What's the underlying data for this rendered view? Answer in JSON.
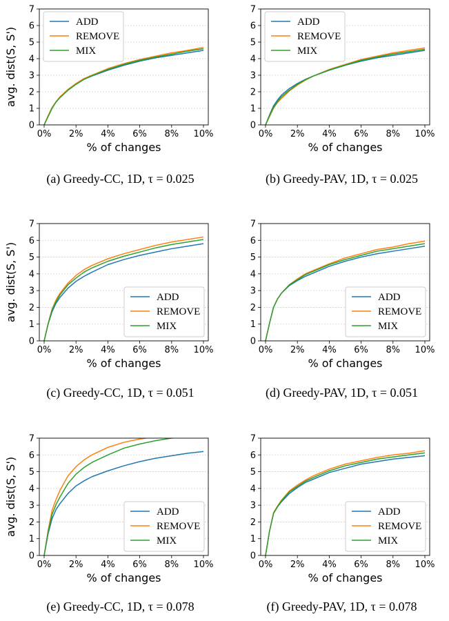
{
  "figure": {
    "colors": {
      "ADD": "#1f77b4",
      "REMOVE": "#ff7f0e",
      "MIX": "#2ca02c",
      "grid": "#d0d0d0"
    }
  },
  "chart_data": [
    {
      "type": "line",
      "panel": "a",
      "caption": "(a) Greedy-CC, 1D, τ = 0.025",
      "xlabel": "% of changes",
      "ylabel": "avg. dist(S, S')",
      "xlim": [
        0,
        10
      ],
      "ylim": [
        0,
        7
      ],
      "xticks": [
        "0%",
        "2%",
        "4%",
        "6%",
        "8%",
        "10%"
      ],
      "yticks": [
        "0",
        "1",
        "2",
        "3",
        "4",
        "5",
        "6",
        "7"
      ],
      "grid": "horizontal",
      "legend_position": "top-left",
      "x": [
        0,
        0.25,
        0.5,
        0.75,
        1,
        1.5,
        2,
        2.5,
        3,
        4,
        5,
        6,
        7,
        8,
        9,
        10
      ],
      "series": [
        {
          "name": "ADD",
          "values": [
            0,
            0.55,
            1.05,
            1.4,
            1.7,
            2.1,
            2.45,
            2.75,
            2.95,
            3.3,
            3.6,
            3.85,
            4.05,
            4.2,
            4.35,
            4.5
          ]
        },
        {
          "name": "REMOVE",
          "values": [
            0,
            0.55,
            1.05,
            1.4,
            1.7,
            2.15,
            2.5,
            2.8,
            3.0,
            3.4,
            3.7,
            3.95,
            4.15,
            4.35,
            4.5,
            4.68
          ]
        },
        {
          "name": "MIX",
          "values": [
            0,
            0.5,
            1.0,
            1.38,
            1.65,
            2.1,
            2.45,
            2.75,
            2.97,
            3.35,
            3.65,
            3.9,
            4.1,
            4.27,
            4.45,
            4.6
          ]
        }
      ]
    },
    {
      "type": "line",
      "panel": "b",
      "caption": "(b) Greedy-PAV, 1D, τ = 0.025",
      "xlabel": "% of changes",
      "ylabel": "",
      "xlim": [
        0,
        10
      ],
      "ylim": [
        0,
        7
      ],
      "xticks": [
        "0%",
        "2%",
        "4%",
        "6%",
        "8%",
        "10%"
      ],
      "yticks": [
        "0",
        "1",
        "2",
        "3",
        "4",
        "5",
        "6",
        "7"
      ],
      "grid": "horizontal",
      "legend_position": "top-left",
      "x": [
        0,
        0.25,
        0.5,
        0.75,
        1,
        1.5,
        2,
        2.5,
        3,
        4,
        5,
        6,
        7,
        8,
        9,
        10
      ],
      "series": [
        {
          "name": "ADD",
          "values": [
            0,
            0.6,
            1.15,
            1.5,
            1.8,
            2.2,
            2.5,
            2.75,
            2.95,
            3.3,
            3.6,
            3.85,
            4.05,
            4.2,
            4.35,
            4.5
          ]
        },
        {
          "name": "REMOVE",
          "values": [
            0,
            0.5,
            1.0,
            1.35,
            1.6,
            2.05,
            2.4,
            2.7,
            2.95,
            3.35,
            3.65,
            3.95,
            4.15,
            4.35,
            4.5,
            4.65
          ]
        },
        {
          "name": "MIX",
          "values": [
            0,
            0.55,
            1.05,
            1.4,
            1.7,
            2.1,
            2.45,
            2.73,
            2.95,
            3.32,
            3.62,
            3.9,
            4.1,
            4.28,
            4.42,
            4.57
          ]
        }
      ]
    },
    {
      "type": "line",
      "panel": "c",
      "caption": "(c) Greedy-CC, 1D, τ = 0.051",
      "xlabel": "% of changes",
      "ylabel": "avg. dist(S, S')",
      "xlim": [
        0,
        10
      ],
      "ylim": [
        0,
        7
      ],
      "xticks": [
        "0%",
        "2%",
        "4%",
        "6%",
        "8%",
        "10%"
      ],
      "yticks": [
        "0",
        "1",
        "2",
        "3",
        "4",
        "5",
        "6",
        "7"
      ],
      "grid": "horizontal",
      "legend_position": "bottom-right",
      "x": [
        0,
        0.25,
        0.5,
        0.75,
        1,
        1.5,
        2,
        2.5,
        3,
        4,
        5,
        6,
        7,
        8,
        9,
        10
      ],
      "series": [
        {
          "name": "ADD",
          "values": [
            0,
            1.0,
            1.75,
            2.25,
            2.6,
            3.15,
            3.55,
            3.85,
            4.1,
            4.55,
            4.85,
            5.1,
            5.3,
            5.5,
            5.65,
            5.8
          ]
        },
        {
          "name": "REMOVE",
          "values": [
            0,
            1.05,
            1.9,
            2.45,
            2.85,
            3.45,
            3.9,
            4.25,
            4.5,
            4.9,
            5.2,
            5.45,
            5.7,
            5.9,
            6.05,
            6.2
          ]
        },
        {
          "name": "MIX",
          "values": [
            0,
            1.0,
            1.85,
            2.35,
            2.75,
            3.35,
            3.75,
            4.1,
            4.35,
            4.75,
            5.05,
            5.3,
            5.55,
            5.75,
            5.9,
            6.05
          ]
        }
      ]
    },
    {
      "type": "line",
      "panel": "d",
      "caption": "(d) Greedy-PAV, 1D, τ = 0.051",
      "xlabel": "% of changes",
      "ylabel": "",
      "xlim": [
        0,
        10
      ],
      "ylim": [
        0,
        7
      ],
      "xticks": [
        "0%",
        "2%",
        "4%",
        "6%",
        "8%",
        "10%"
      ],
      "yticks": [
        "0",
        "1",
        "2",
        "3",
        "4",
        "5",
        "6",
        "7"
      ],
      "grid": "horizontal",
      "legend_position": "bottom-right",
      "x": [
        0,
        0.25,
        0.5,
        0.75,
        1,
        1.5,
        2,
        2.5,
        3,
        4,
        5,
        6,
        7,
        8,
        9,
        10
      ],
      "series": [
        {
          "name": "ADD",
          "values": [
            0,
            1.05,
            2.0,
            2.5,
            2.85,
            3.3,
            3.6,
            3.85,
            4.05,
            4.45,
            4.75,
            5.0,
            5.2,
            5.35,
            5.5,
            5.65
          ]
        },
        {
          "name": "REMOVE",
          "values": [
            0,
            1.05,
            2.0,
            2.5,
            2.85,
            3.35,
            3.7,
            4.0,
            4.2,
            4.6,
            4.95,
            5.2,
            5.45,
            5.6,
            5.8,
            5.95
          ]
        },
        {
          "name": "MIX",
          "values": [
            0,
            1.05,
            2.0,
            2.5,
            2.85,
            3.35,
            3.65,
            3.95,
            4.15,
            4.55,
            4.85,
            5.1,
            5.35,
            5.5,
            5.65,
            5.8
          ]
        }
      ]
    },
    {
      "type": "line",
      "panel": "e",
      "caption": "(e) Greedy-CC, 1D, τ = 0.078",
      "xlabel": "% of changes",
      "ylabel": "avg. dist(S, S')",
      "xlim": [
        0,
        10
      ],
      "ylim": [
        0,
        7
      ],
      "xticks": [
        "0%",
        "2%",
        "4%",
        "6%",
        "8%",
        "10%"
      ],
      "yticks": [
        "0",
        "1",
        "2",
        "3",
        "4",
        "5",
        "6",
        "7"
      ],
      "grid": "horizontal",
      "legend_position": "bottom-right",
      "x": [
        0,
        0.25,
        0.5,
        0.75,
        1,
        1.5,
        2,
        2.5,
        3,
        4,
        5,
        6,
        7,
        8,
        9,
        10
      ],
      "series": [
        {
          "name": "ADD",
          "values": [
            0,
            1.3,
            2.2,
            2.75,
            3.1,
            3.7,
            4.15,
            4.45,
            4.7,
            5.05,
            5.35,
            5.6,
            5.8,
            5.95,
            6.1,
            6.2
          ]
        },
        {
          "name": "REMOVE",
          "values": [
            0,
            1.5,
            2.7,
            3.35,
            3.9,
            4.75,
            5.3,
            5.7,
            6.0,
            6.45,
            6.75,
            6.95,
            7.08,
            7.15,
            7.2,
            7.25
          ]
        },
        {
          "name": "MIX",
          "values": [
            0,
            1.4,
            2.45,
            3.05,
            3.5,
            4.3,
            4.85,
            5.25,
            5.55,
            6.0,
            6.4,
            6.65,
            6.85,
            7.0,
            7.12,
            7.2
          ]
        }
      ]
    },
    {
      "type": "line",
      "panel": "f",
      "caption": "(f) Greedy-PAV, 1D, τ = 0.078",
      "xlabel": "% of changes",
      "ylabel": "",
      "xlim": [
        0,
        10
      ],
      "ylim": [
        0,
        7
      ],
      "xticks": [
        "0%",
        "2%",
        "4%",
        "6%",
        "8%",
        "10%"
      ],
      "yticks": [
        "0",
        "1",
        "2",
        "3",
        "4",
        "5",
        "6",
        "7"
      ],
      "grid": "horizontal",
      "legend_position": "bottom-right",
      "x": [
        0,
        0.25,
        0.5,
        0.75,
        1,
        1.5,
        2,
        2.5,
        3,
        4,
        5,
        6,
        7,
        8,
        9,
        10
      ],
      "series": [
        {
          "name": "ADD",
          "values": [
            0,
            1.45,
            2.5,
            2.9,
            3.2,
            3.7,
            4.05,
            4.35,
            4.55,
            4.95,
            5.2,
            5.45,
            5.6,
            5.75,
            5.85,
            5.95
          ]
        },
        {
          "name": "REMOVE",
          "values": [
            0,
            1.45,
            2.55,
            2.95,
            3.3,
            3.85,
            4.2,
            4.5,
            4.75,
            5.15,
            5.45,
            5.65,
            5.85,
            6.0,
            6.1,
            6.25
          ]
        },
        {
          "name": "MIX",
          "values": [
            0,
            1.45,
            2.5,
            2.92,
            3.25,
            3.8,
            4.12,
            4.43,
            4.65,
            5.05,
            5.35,
            5.55,
            5.75,
            5.88,
            6.0,
            6.12
          ]
        }
      ]
    }
  ]
}
